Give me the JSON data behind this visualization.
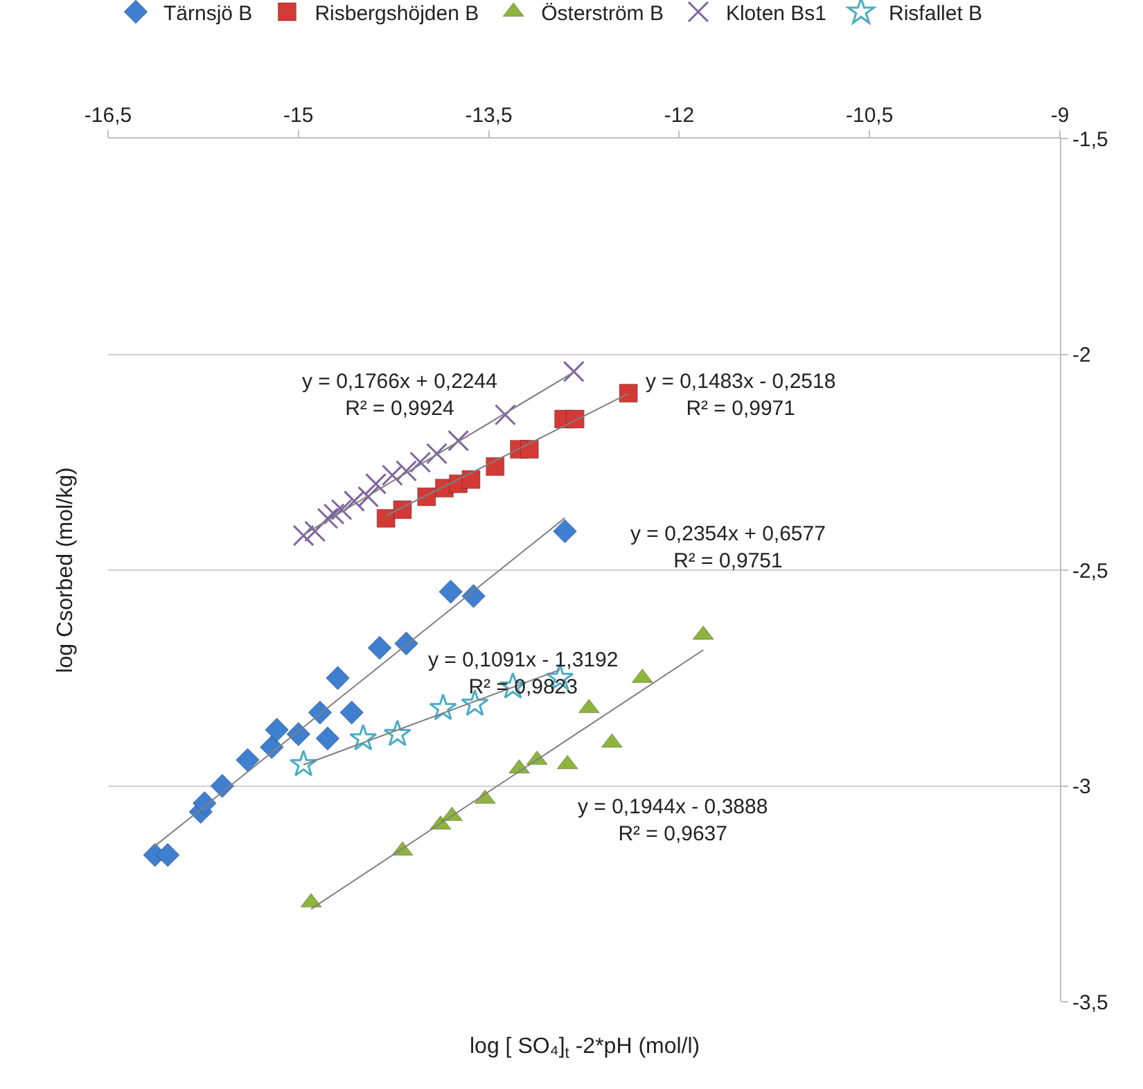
{
  "chart_data": {
    "type": "scatter",
    "xlabel": "log [ SO₄]$_{t}$ -2*pH (mol/l)",
    "ylabel": "log Csorbed (mol/kg)",
    "xlim": [
      -16.5,
      -9
    ],
    "xticks": [
      {
        "value": -16.5,
        "label": "-16,5"
      },
      -15,
      {
        "value": -13.5,
        "label": "-13,5"
      },
      -12,
      {
        "value": -10.5,
        "label": "-10,5"
      },
      -9
    ],
    "ylim": [
      -3.5,
      -1.5
    ],
    "yticks": [
      {
        "value": -3.5,
        "label": "-3,5"
      },
      -3,
      {
        "value": -2.5,
        "label": "-2,5"
      },
      -2,
      {
        "value": -1.5,
        "label": "-1,5"
      }
    ],
    "grid": "y",
    "legend": "top",
    "series": [
      {
        "name": "Tärnsjö B",
        "color": "#3f7fd0",
        "marker": "diamond",
        "x": [
          -16.13,
          -16.03,
          -15.77,
          -15.74,
          -15.6,
          -15.4,
          -15.21,
          -15.17,
          -15.0,
          -14.77,
          -14.83,
          -14.58,
          -14.69,
          -14.36,
          -14.15,
          -13.8,
          -13.62,
          -12.9
        ],
        "values": [
          -3.16,
          -3.16,
          -3.06,
          -3.04,
          -3.0,
          -2.94,
          -2.91,
          -2.87,
          -2.88,
          -2.89,
          -2.83,
          -2.83,
          -2.75,
          -2.68,
          -2.67,
          -2.55,
          -2.56,
          -2.41
        ]
      },
      {
        "name": "Risbergshöjden B",
        "color": "#d33a36",
        "marker": "square",
        "x": [
          -14.31,
          -14.18,
          -13.99,
          -13.85,
          -13.74,
          -13.64,
          -13.45,
          -13.26,
          -13.18,
          -12.91,
          -12.82,
          -12.4
        ],
        "values": [
          -2.38,
          -2.36,
          -2.33,
          -2.31,
          -2.3,
          -2.29,
          -2.26,
          -2.22,
          -2.22,
          -2.15,
          -2.15,
          -2.09
        ]
      },
      {
        "name": "Österström B",
        "color": "#8db43c",
        "marker": "triangle",
        "x": [
          -14.9,
          -14.18,
          -13.88,
          -13.79,
          -13.53,
          -13.26,
          -13.12,
          -12.88,
          -12.71,
          -12.53,
          -12.29,
          -11.81
        ],
        "values": [
          -3.27,
          -3.15,
          -3.09,
          -3.07,
          -3.03,
          -2.96,
          -2.94,
          -2.95,
          -2.82,
          -2.9,
          -2.75,
          -2.65
        ]
      },
      {
        "name": "Kloten Bs1",
        "color": "#8064a2",
        "marker": "cross",
        "x": [
          -14.96,
          -14.87,
          -14.77,
          -14.72,
          -14.66,
          -14.56,
          -14.45,
          -14.39,
          -14.26,
          -14.15,
          -14.04,
          -13.91,
          -13.74,
          -13.37,
          -12.83
        ],
        "values": [
          -2.42,
          -2.41,
          -2.38,
          -2.37,
          -2.36,
          -2.34,
          -2.33,
          -2.3,
          -2.28,
          -2.27,
          -2.25,
          -2.23,
          -2.2,
          -2.14,
          -2.04
        ]
      },
      {
        "name": "Risfallet B",
        "color": "#4bacc6",
        "marker": "star",
        "x": [
          -14.96,
          -14.49,
          -14.22,
          -13.86,
          -13.61,
          -13.31,
          -12.94
        ],
        "values": [
          -2.95,
          -2.89,
          -2.88,
          -2.82,
          -2.81,
          -2.77,
          -2.75
        ]
      },
      {
        "type": "line",
        "color": "#7f7f7f",
        "marker": "none",
        "x": [
          -16.13,
          -12.9
        ],
        "values": [
          -3.139,
          -2.379
        ]
      },
      {
        "type": "line",
        "color": "#7f7f7f",
        "marker": "none",
        "x": [
          -14.31,
          -12.4
        ],
        "values": [
          -2.374,
          -2.091
        ]
      },
      {
        "type": "line",
        "color": "#7f7f7f",
        "marker": "none",
        "x": [
          -14.9,
          -11.81
        ],
        "values": [
          -3.285,
          -2.685
        ]
      },
      {
        "type": "line",
        "color": "#7f7f7f",
        "marker": "none",
        "x": [
          -14.96,
          -12.83
        ],
        "values": [
          -2.418,
          -2.041
        ]
      },
      {
        "type": "line",
        "color": "#7f7f7f",
        "marker": "none",
        "x": [
          -14.96,
          -12.94
        ],
        "values": [
          -2.951,
          -2.731
        ]
      }
    ],
    "annotations": [
      "y = 0,1766x + 0,2244\nR² = 0,9924",
      "y = 0,1483x - 0,2518\nR² = 0,9971",
      "y = 0,2354x + 0,6577\nR² = 0,9751",
      "y = 0,1091x - 1,3192\nR² = 0,9823",
      "y = 0,1944x - 0,3888\nR² = 0,9637"
    ]
  }
}
